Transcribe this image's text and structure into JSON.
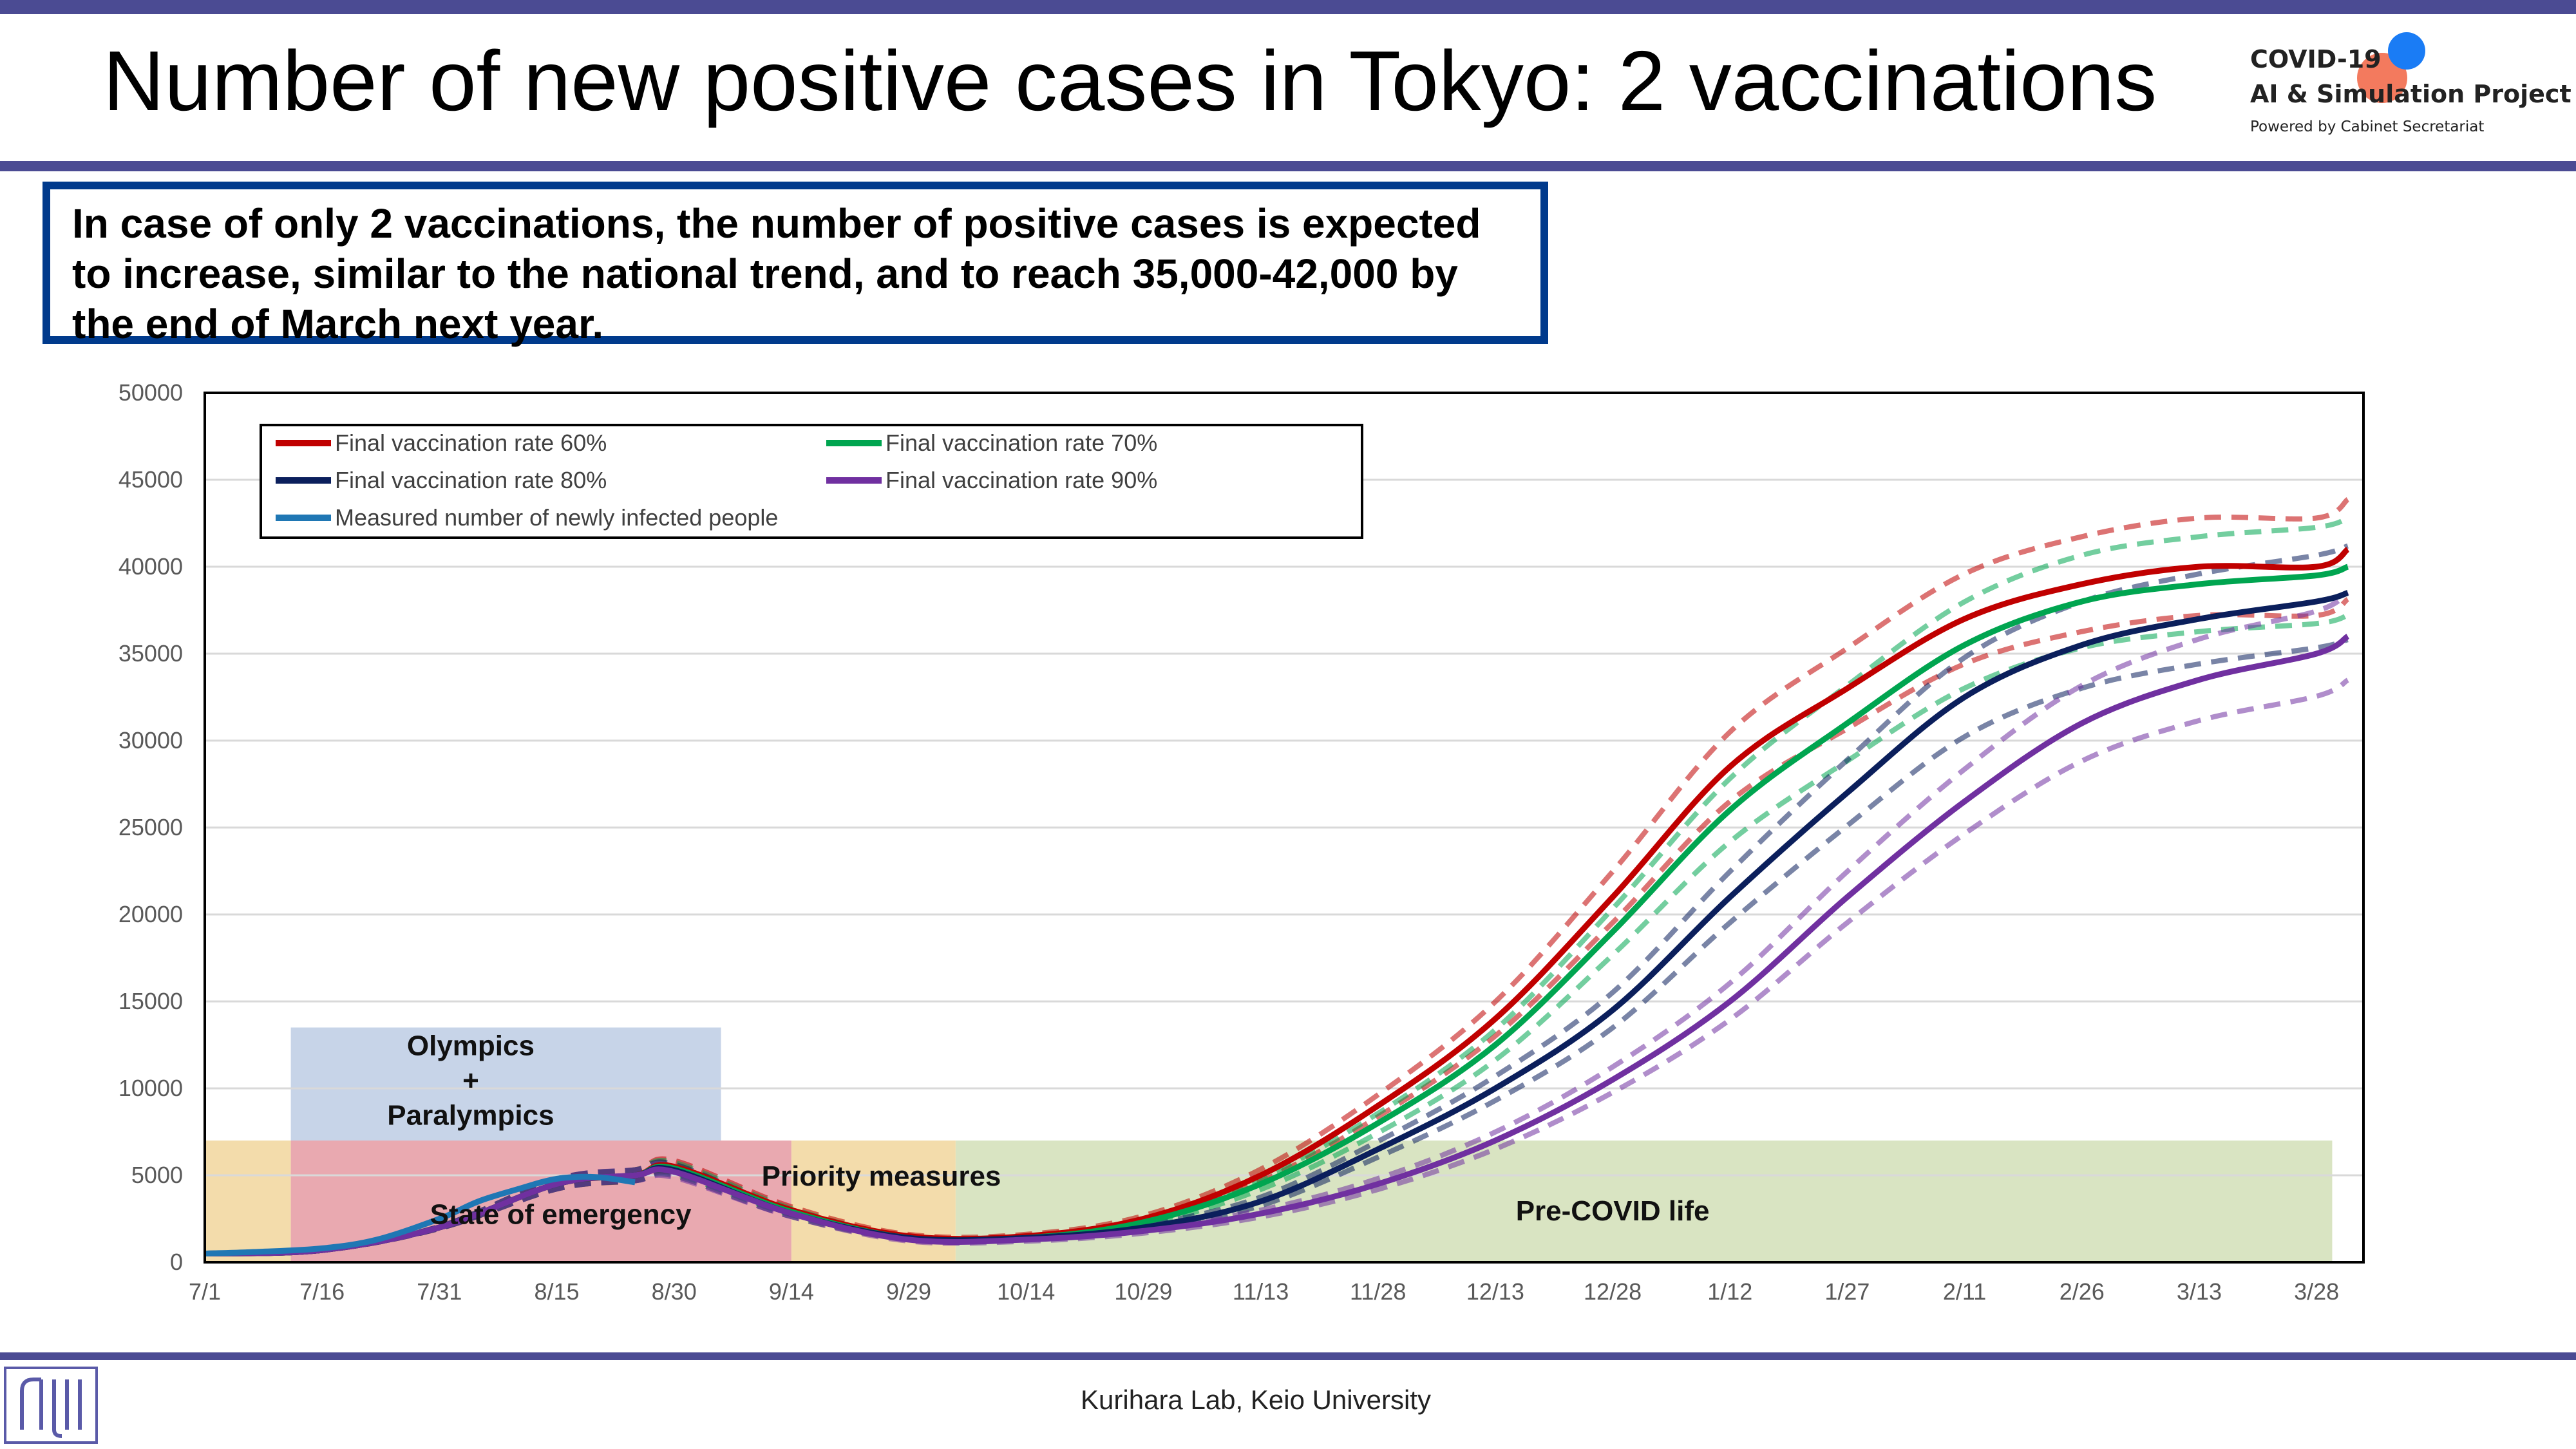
{
  "header": {
    "title": "Number of new positive cases in Tokyo: 2 vaccinations",
    "logo_line1": "COVID-19",
    "logo_line2": "AI & Simulation Project",
    "logo_line3": "Powered by Cabinet Secretariat"
  },
  "callout": {
    "text": "In case of only 2 vaccinations, the number of positive cases is expected to increase, similar to the national trend, and to reach 35,000-42,000 by the end of March next year."
  },
  "footer": {
    "text": "Kurihara Lab, Keio University"
  },
  "colors": {
    "rate60": "#c00000",
    "rate70": "#00a550",
    "rate80": "#0b1f5c",
    "rate90": "#7030a0",
    "measured": "#1f77b4",
    "band_orange": "#f3dcab",
    "band_red": "#e9a9b0",
    "band_blue": "#c7d4e8",
    "band_green": "#d9e4c2"
  },
  "chart_data": {
    "type": "line",
    "title": "",
    "xlabel": "",
    "ylabel": "",
    "x_day_ticks": [
      0,
      15,
      30,
      45,
      60,
      75,
      90,
      105,
      120,
      135,
      150,
      165,
      180,
      195,
      210,
      225,
      240,
      255,
      270
    ],
    "x_tick_labels": [
      "7/1",
      "7/16",
      "7/31",
      "8/15",
      "8/30",
      "9/14",
      "9/29",
      "10/14",
      "10/29",
      "11/13",
      "11/28",
      "12/13",
      "12/28",
      "1/12",
      "1/27",
      "2/11",
      "2/26",
      "3/13",
      "3/28"
    ],
    "xlim": [
      "7/1",
      "4/3"
    ],
    "ylim": [
      0,
      50000
    ],
    "y_ticks": [
      0,
      5000,
      10000,
      15000,
      20000,
      25000,
      30000,
      35000,
      40000,
      45000,
      50000
    ],
    "grid": true,
    "legend_position": "top-left",
    "legend": [
      "Final vaccination rate 60%",
      "Final vaccination rate 70%",
      "Final vaccination rate 80%",
      "Final vaccination rate 90%",
      "Measured number of newly infected people"
    ],
    "bands": [
      {
        "label": "",
        "from": "7/1",
        "to": "7/12",
        "y_top": 7000,
        "color": "band_orange"
      },
      {
        "label": "State of emergency",
        "from": "7/12",
        "to": "9/14",
        "y_top": 7000,
        "color": "band_red"
      },
      {
        "label": "Olympics + Paralympics",
        "label_lines": [
          "Olympics",
          "+",
          "Paralympics"
        ],
        "from": "7/12",
        "to": "9/5",
        "y_bottom": 7000,
        "y_top": 13500,
        "color": "band_blue"
      },
      {
        "label": "Priority measures",
        "from": "9/14",
        "to": "10/5",
        "y_top": 7000,
        "color": "band_orange"
      },
      {
        "label": "Pre-COVID life",
        "from": "10/5",
        "to": "3/30",
        "y_top": 7000,
        "color": "band_green"
      }
    ],
    "series": [
      {
        "name": "Final vaccination rate 60%",
        "color": "rate60",
        "x": [
          "7/1",
          "7/16",
          "7/31",
          "8/15",
          "8/25",
          "8/30",
          "9/14",
          "9/29",
          "10/14",
          "10/29",
          "11/13",
          "11/28",
          "12/13",
          "12/28",
          "1/12",
          "1/27",
          "2/11",
          "2/26",
          "3/13",
          "3/28",
          "4/1"
        ],
        "values": [
          500,
          700,
          2000,
          4500,
          5000,
          5500,
          3000,
          1500,
          1500,
          2500,
          5000,
          9000,
          14000,
          21000,
          28500,
          33000,
          37000,
          39000,
          40000,
          40000,
          41000
        ]
      },
      {
        "name": "Final vaccination rate 70%",
        "color": "rate70",
        "x": [
          "7/1",
          "7/16",
          "7/31",
          "8/15",
          "8/25",
          "8/30",
          "9/14",
          "9/29",
          "10/14",
          "10/29",
          "11/13",
          "11/28",
          "12/13",
          "12/28",
          "1/12",
          "1/27",
          "2/11",
          "2/26",
          "3/13",
          "3/28",
          "4/1"
        ],
        "values": [
          500,
          700,
          2000,
          4500,
          5000,
          5400,
          2900,
          1400,
          1400,
          2300,
          4500,
          8000,
          12500,
          19000,
          26000,
          31000,
          35500,
          38000,
          39000,
          39500,
          40000
        ]
      },
      {
        "name": "Final vaccination rate 80%",
        "color": "rate80",
        "x": [
          "7/1",
          "7/16",
          "7/31",
          "8/15",
          "8/25",
          "8/30",
          "9/14",
          "9/29",
          "10/14",
          "10/29",
          "11/13",
          "11/28",
          "12/13",
          "12/28",
          "1/12",
          "1/27",
          "2/11",
          "2/26",
          "3/13",
          "3/28",
          "4/1"
        ],
        "values": [
          500,
          700,
          2000,
          4500,
          5000,
          5300,
          2800,
          1400,
          1400,
          2000,
          3500,
          6500,
          10000,
          14500,
          21000,
          27000,
          32500,
          35500,
          37000,
          38000,
          38500
        ]
      },
      {
        "name": "Final vaccination rate 90%",
        "color": "rate90",
        "x": [
          "7/1",
          "7/16",
          "7/31",
          "8/15",
          "8/25",
          "8/30",
          "9/14",
          "9/29",
          "10/14",
          "10/29",
          "11/13",
          "11/28",
          "12/13",
          "12/28",
          "1/12",
          "1/27",
          "2/11",
          "2/26",
          "3/13",
          "3/28",
          "4/1"
        ],
        "values": [
          500,
          700,
          2000,
          4500,
          5000,
          5200,
          2800,
          1300,
          1300,
          1800,
          2800,
          4500,
          7000,
          10500,
          15000,
          21000,
          26500,
          31000,
          33500,
          35000,
          36000
        ]
      },
      {
        "name": "Measured number of newly infected people",
        "color": "measured",
        "x": [
          "7/1",
          "7/8",
          "7/16",
          "7/23",
          "7/31",
          "8/5",
          "8/10",
          "8/15",
          "8/20",
          "8/25"
        ],
        "values": [
          500,
          600,
          800,
          1300,
          2500,
          3500,
          4200,
          4800,
          4900,
          4600
        ]
      }
    ]
  }
}
